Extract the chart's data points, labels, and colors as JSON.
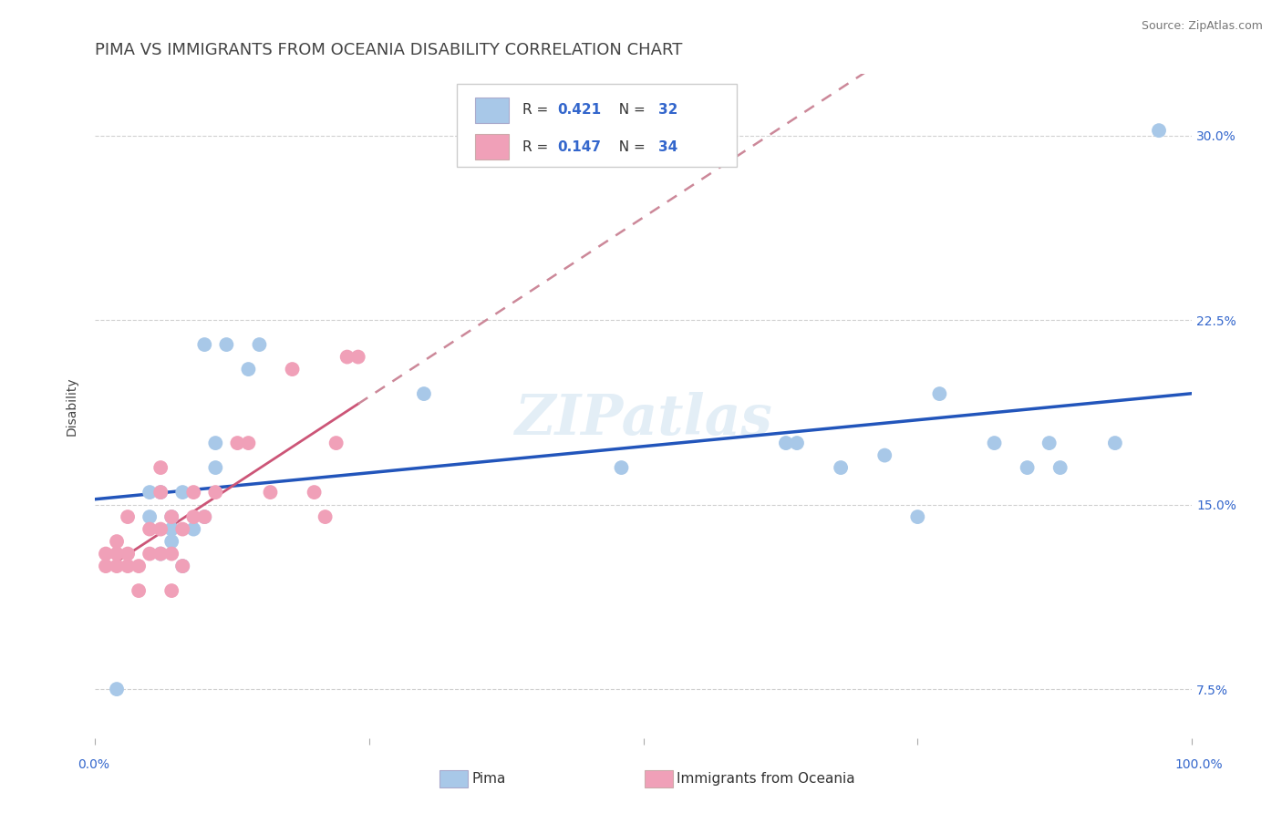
{
  "title": "PIMA VS IMMIGRANTS FROM OCEANIA DISABILITY CORRELATION CHART",
  "source": "Source: ZipAtlas.com",
  "ylabel": "Disability",
  "xlim": [
    0.0,
    1.0
  ],
  "ylim": [
    0.055,
    0.325
  ],
  "yticks": [
    0.075,
    0.15,
    0.225,
    0.3
  ],
  "ytick_labels": [
    "7.5%",
    "15.0%",
    "22.5%",
    "30.0%"
  ],
  "xticks": [
    0.0,
    0.25,
    0.5,
    0.75,
    1.0
  ],
  "xtick_labels": [
    "0.0%",
    "",
    "",
    "",
    "100.0%"
  ],
  "grid_color": "#d0d0d0",
  "background_color": "#ffffff",
  "series1_color": "#a8c8e8",
  "series2_color": "#f0a0b8",
  "line1_color": "#2255bb",
  "line2_color": "#cc5577",
  "line2_dash_color": "#cc8899",
  "watermark": "ZIPatlas",
  "title_color": "#444444",
  "tick_color": "#3366cc",
  "pima_x": [
    0.02,
    0.05,
    0.05,
    0.06,
    0.06,
    0.07,
    0.07,
    0.07,
    0.08,
    0.08,
    0.09,
    0.1,
    0.1,
    0.11,
    0.11,
    0.12,
    0.14,
    0.15,
    0.3,
    0.48,
    0.63,
    0.64,
    0.68,
    0.72,
    0.75,
    0.77,
    0.82,
    0.85,
    0.87,
    0.88,
    0.93,
    0.97
  ],
  "pima_y": [
    0.075,
    0.145,
    0.155,
    0.13,
    0.155,
    0.135,
    0.14,
    0.145,
    0.125,
    0.155,
    0.14,
    0.145,
    0.215,
    0.165,
    0.175,
    0.215,
    0.205,
    0.215,
    0.195,
    0.165,
    0.175,
    0.175,
    0.165,
    0.17,
    0.145,
    0.195,
    0.175,
    0.165,
    0.175,
    0.165,
    0.175,
    0.302
  ],
  "oceania_x": [
    0.01,
    0.01,
    0.02,
    0.02,
    0.02,
    0.03,
    0.03,
    0.03,
    0.04,
    0.04,
    0.05,
    0.05,
    0.06,
    0.06,
    0.06,
    0.06,
    0.07,
    0.07,
    0.07,
    0.08,
    0.08,
    0.09,
    0.09,
    0.1,
    0.11,
    0.13,
    0.14,
    0.16,
    0.18,
    0.2,
    0.21,
    0.22,
    0.23,
    0.24
  ],
  "oceania_y": [
    0.13,
    0.125,
    0.125,
    0.13,
    0.135,
    0.125,
    0.13,
    0.145,
    0.115,
    0.125,
    0.13,
    0.14,
    0.13,
    0.14,
    0.155,
    0.165,
    0.115,
    0.13,
    0.145,
    0.125,
    0.14,
    0.145,
    0.155,
    0.145,
    0.155,
    0.175,
    0.175,
    0.155,
    0.205,
    0.155,
    0.145,
    0.175,
    0.21,
    0.21
  ],
  "title_fontsize": 13,
  "axis_label_fontsize": 10,
  "tick_fontsize": 10,
  "legend_fontsize": 11
}
